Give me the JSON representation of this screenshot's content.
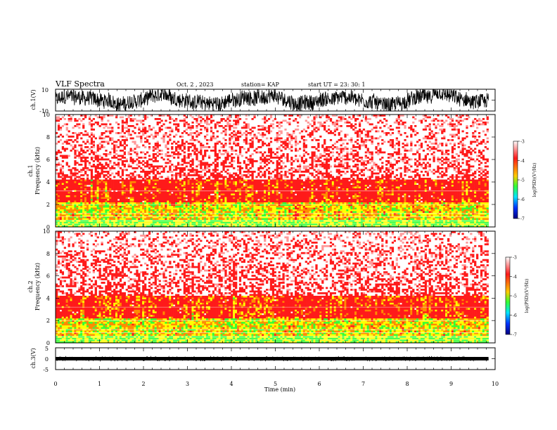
{
  "header": {
    "title": "VLF Spectra",
    "date": "Oct. 2 , 2023",
    "station": "station= KAP",
    "start": "start UT = 23: 30: 1"
  },
  "colors": {
    "white": "#ffffff",
    "red": "#ff1a1a",
    "orange": "#ff8c00",
    "yellow": "#ffff00",
    "green": "#33ff33",
    "cyan": "#00e5ff",
    "blue": "#0044ff",
    "navy": "#000080"
  },
  "chart_data": [
    {
      "type": "line",
      "ylabel": "ch.1(V)",
      "ylim": [
        -10,
        10
      ],
      "ytick_labels": [
        "10",
        "-10"
      ],
      "xlim": [
        0,
        10
      ],
      "description_of_series": "noisy waveform mostly between -10 and 10 V, baseline about 0"
    },
    {
      "type": "heatmap",
      "ylabel_top": "ch.1",
      "ylabel_bottom": "Frequency (kHz)",
      "ylim": [
        0,
        10
      ],
      "ytick_labels": [
        "0",
        "2",
        "4",
        "6",
        "8",
        "10"
      ],
      "xlim": [
        0,
        10
      ],
      "colorbar": {
        "label": "log(PSD)(V²/Hz)",
        "ticks": [
          "-3",
          "-4",
          "-5",
          "-6",
          "-7"
        ],
        "range": [
          -7,
          -3
        ]
      }
    },
    {
      "type": "heatmap",
      "ylabel_top": "ch.2",
      "ylabel_bottom": "Frequency (kHz)",
      "ylim": [
        0,
        10
      ],
      "ytick_labels": [
        "0",
        "2",
        "4",
        "6",
        "8",
        "10"
      ],
      "xlim": [
        0,
        10
      ],
      "colorbar": {
        "label": "log(PSD)(V²/Hz)",
        "ticks": [
          "-3",
          "-4",
          "-5",
          "-6",
          "-7"
        ],
        "range": [
          -7,
          -3
        ]
      }
    },
    {
      "type": "line",
      "ylabel": "ch.3(V)",
      "ylim": [
        -5,
        5
      ],
      "ytick_labels": [
        "5",
        "0",
        "-5"
      ],
      "xlim": [
        0,
        10
      ],
      "xlabel": "Time (min)",
      "xtick_labels": [
        "0",
        "1",
        "2",
        "3",
        "4",
        "5",
        "6",
        "7",
        "8",
        "9",
        "10"
      ]
    }
  ]
}
